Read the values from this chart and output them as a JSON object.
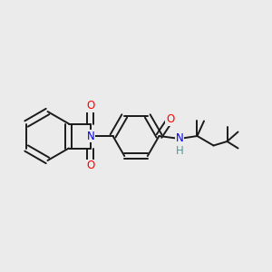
{
  "background_color": "#ebebeb",
  "bond_color": "#1a1a1a",
  "atom_colors": {
    "O": "#ff0000",
    "N": "#0000ff",
    "H": "#4a9999",
    "C": "#1a1a1a"
  },
  "lw": 1.4,
  "fontsize": 7.5
}
